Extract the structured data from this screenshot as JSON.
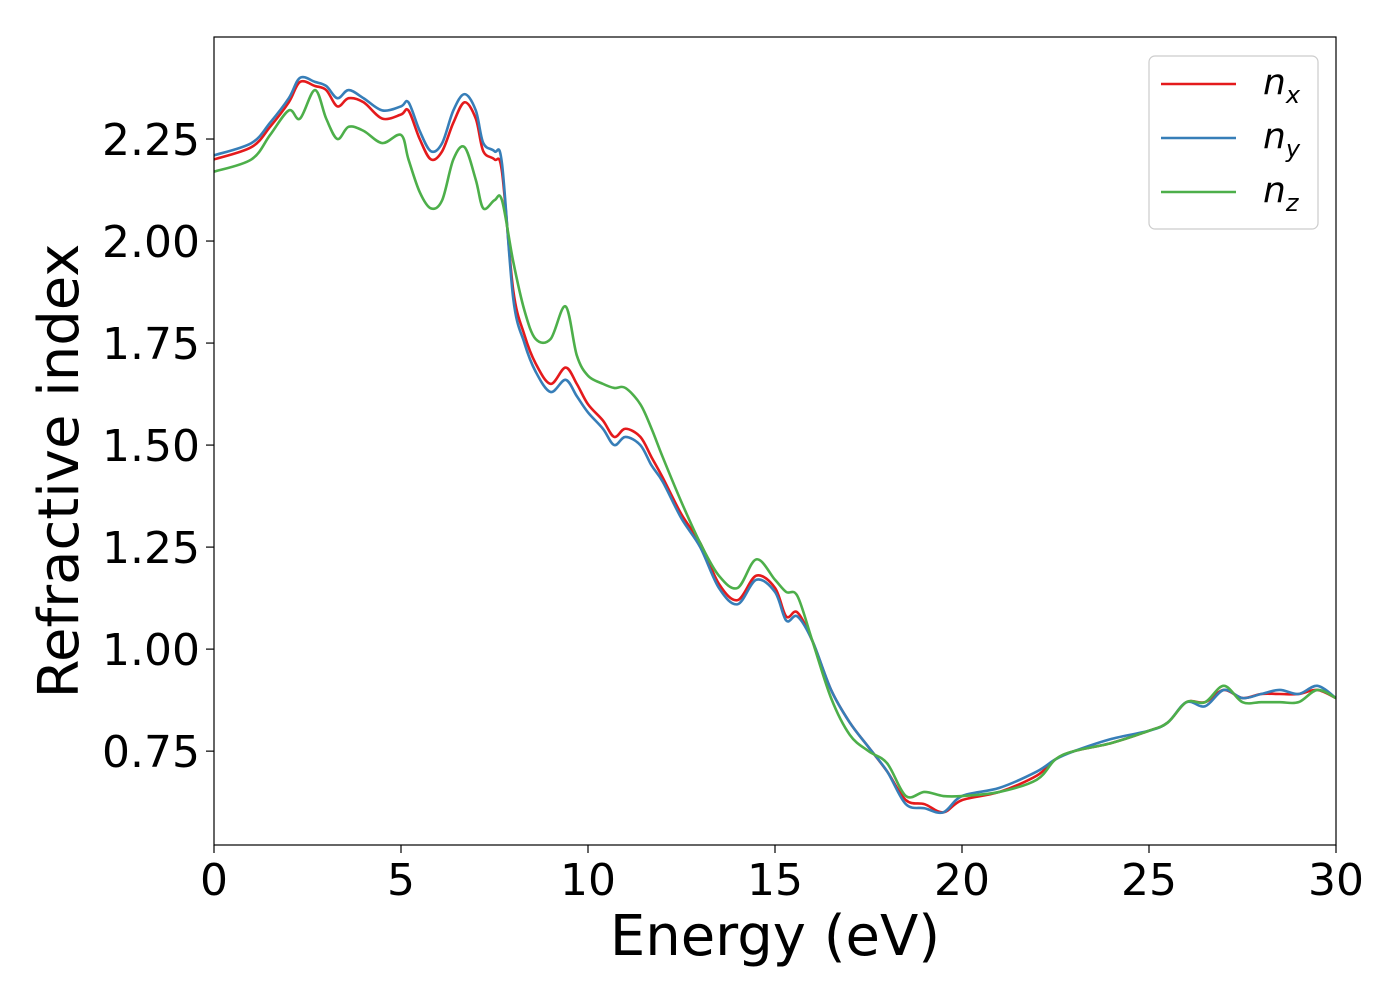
{
  "chart_data": {
    "type": "line",
    "xlabel": "Energy (eV)",
    "ylabel": "Refractive index",
    "xlim": [
      0,
      30
    ],
    "ylim": [
      0.52,
      2.5
    ],
    "xticks": [
      0,
      5,
      10,
      15,
      20,
      25,
      30
    ],
    "xtick_labels": [
      "0",
      "5",
      "10",
      "15",
      "20",
      "25",
      "30"
    ],
    "yticks": [
      0.75,
      1.0,
      1.25,
      1.5,
      1.75,
      2.0,
      2.25
    ],
    "ytick_labels": [
      "0.75",
      "1.00",
      "1.25",
      "1.50",
      "1.75",
      "2.00",
      "2.25"
    ],
    "grid": false,
    "legend_position": "top-right",
    "x": [
      0,
      1,
      1.5,
      2,
      2.3,
      2.7,
      3,
      3.3,
      3.6,
      4,
      4.5,
      5,
      5.2,
      5.5,
      5.8,
      6.1,
      6.4,
      6.7,
      7,
      7.2,
      7.5,
      7.7,
      8,
      8.3,
      8.6,
      9,
      9.4,
      9.7,
      10,
      10.4,
      10.7,
      11,
      11.4,
      11.7,
      12,
      12.5,
      13,
      13.5,
      14,
      14.5,
      15,
      15.3,
      15.6,
      16,
      16.5,
      17,
      17.5,
      18,
      18.5,
      19,
      19.5,
      20,
      21,
      22,
      22.5,
      23,
      24,
      25,
      25.5,
      26,
      26.5,
      27,
      27.5,
      28,
      28.5,
      29,
      29.5,
      30
    ],
    "series": [
      {
        "name": "n_x",
        "legend_base": "n",
        "legend_sub": "x",
        "color": "#e41a1c",
        "values": [
          2.2,
          2.23,
          2.28,
          2.34,
          2.39,
          2.38,
          2.37,
          2.33,
          2.35,
          2.34,
          2.3,
          2.31,
          2.32,
          2.25,
          2.2,
          2.22,
          2.29,
          2.34,
          2.3,
          2.22,
          2.2,
          2.17,
          1.88,
          1.77,
          1.7,
          1.65,
          1.69,
          1.65,
          1.6,
          1.56,
          1.52,
          1.54,
          1.52,
          1.47,
          1.42,
          1.33,
          1.26,
          1.16,
          1.12,
          1.18,
          1.15,
          1.08,
          1.09,
          1.02,
          0.9,
          0.82,
          0.76,
          0.7,
          0.63,
          0.62,
          0.6,
          0.63,
          0.65,
          0.69,
          0.73,
          0.75,
          0.77,
          0.8,
          0.82,
          0.87,
          0.87,
          0.9,
          0.88,
          0.89,
          0.89,
          0.89,
          0.9,
          0.88
        ]
      },
      {
        "name": "n_y",
        "legend_base": "n",
        "legend_sub": "y",
        "color": "#377eb8",
        "values": [
          2.21,
          2.24,
          2.29,
          2.35,
          2.4,
          2.39,
          2.38,
          2.35,
          2.37,
          2.35,
          2.32,
          2.33,
          2.34,
          2.27,
          2.22,
          2.24,
          2.32,
          2.36,
          2.32,
          2.24,
          2.22,
          2.19,
          1.86,
          1.75,
          1.68,
          1.63,
          1.66,
          1.62,
          1.58,
          1.54,
          1.5,
          1.52,
          1.5,
          1.45,
          1.41,
          1.32,
          1.25,
          1.15,
          1.11,
          1.17,
          1.14,
          1.07,
          1.08,
          1.02,
          0.9,
          0.82,
          0.76,
          0.7,
          0.62,
          0.61,
          0.6,
          0.64,
          0.66,
          0.7,
          0.73,
          0.75,
          0.78,
          0.8,
          0.82,
          0.87,
          0.86,
          0.9,
          0.88,
          0.89,
          0.9,
          0.89,
          0.91,
          0.88
        ]
      },
      {
        "name": "n_z",
        "legend_base": "n",
        "legend_sub": "z",
        "color": "#4daf4a",
        "values": [
          2.17,
          2.2,
          2.26,
          2.32,
          2.3,
          2.37,
          2.3,
          2.25,
          2.28,
          2.27,
          2.24,
          2.26,
          2.2,
          2.12,
          2.08,
          2.1,
          2.2,
          2.23,
          2.15,
          2.08,
          2.1,
          2.1,
          1.95,
          1.83,
          1.76,
          1.76,
          1.84,
          1.72,
          1.67,
          1.65,
          1.64,
          1.64,
          1.6,
          1.54,
          1.47,
          1.36,
          1.26,
          1.18,
          1.15,
          1.22,
          1.17,
          1.14,
          1.13,
          1.02,
          0.88,
          0.79,
          0.75,
          0.72,
          0.64,
          0.65,
          0.64,
          0.64,
          0.65,
          0.68,
          0.73,
          0.75,
          0.77,
          0.8,
          0.82,
          0.87,
          0.87,
          0.91,
          0.87,
          0.87,
          0.87,
          0.87,
          0.9,
          0.88
        ]
      }
    ]
  }
}
